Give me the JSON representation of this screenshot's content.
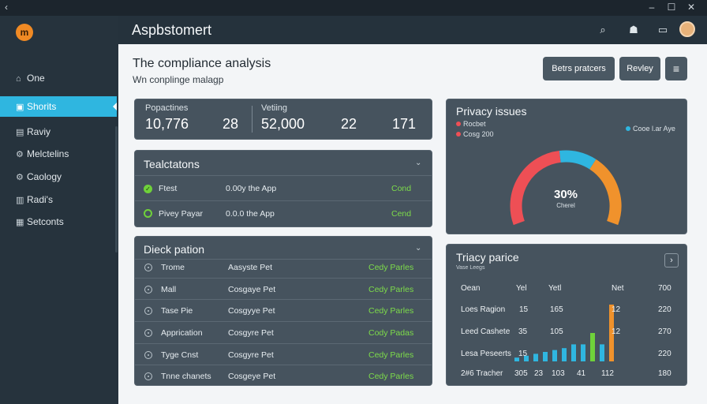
{
  "window": {
    "back_icon": "‹",
    "minimize_icon": "–",
    "maximize_icon": "☐",
    "close_icon": "✕"
  },
  "app": {
    "title": "Aspbstomert",
    "logo_text": "m",
    "colors": {
      "accent": "#2fb6e0",
      "orange": "#f0922c",
      "green": "#6fd13a",
      "red": "#ee4f55"
    }
  },
  "sidebar": {
    "items": [
      {
        "label": "One",
        "icon": "home-icon"
      },
      {
        "label": "Shorits",
        "icon": "shortcut-icon"
      },
      {
        "label": "Raviy",
        "icon": "review-icon"
      },
      {
        "label": "Melctelins",
        "icon": "metrics-icon"
      },
      {
        "label": "Caology",
        "icon": "catalog-icon"
      },
      {
        "label": "Radi's",
        "icon": "radio-icon"
      },
      {
        "label": "Setconts",
        "icon": "settings-icon"
      }
    ]
  },
  "page": {
    "title": "The compliance analysis",
    "subtitle": "Wn conplinge malagp",
    "buttons": {
      "primary": "Betrs pratcers",
      "secondary": "Revley",
      "menu": "≡"
    }
  },
  "stats": {
    "left_label": "Popactines",
    "right_label": "Vetiing",
    "values": [
      "10,776",
      "28",
      "52,000",
      "22",
      "171"
    ]
  },
  "transactions": {
    "title": "Tealctatons",
    "rows": [
      {
        "name": "Ftest",
        "detail": "0.00y the App",
        "status": "Cond"
      },
      {
        "name": "Pivey Payar",
        "detail": "0.0.0 the App",
        "status": "Cend"
      }
    ]
  },
  "deck": {
    "title": "Dieck pation",
    "rows": [
      {
        "name": "Trome",
        "type": "Aasyste Pet",
        "status": "Cedy Parles"
      },
      {
        "name": "Mall",
        "type": "Cosgaye Pet",
        "status": "Cedy Parles"
      },
      {
        "name": "Tase Pie",
        "type": "Cosgyye Pet",
        "status": "Cedy Parles"
      },
      {
        "name": "Apprication",
        "type": "Cosgyre Pet",
        "status": "Cody Padas"
      },
      {
        "name": "Tyge Cnst",
        "type": "Cosgyre Pet",
        "status": "Cedy Parles"
      },
      {
        "name": "Tnne chanets",
        "type": "Cosgeye Pet",
        "status": "Cedy Parles"
      }
    ]
  },
  "privacy": {
    "title": "Privacy issues",
    "legend": [
      {
        "label": "Rocbet",
        "color": "#ee4f55"
      },
      {
        "label": "Cosg 200",
        "color": "#ee4f55"
      },
      {
        "label": "Cooe l.ar Aye",
        "color": "#2fb6e0"
      }
    ],
    "gauge_value": "30%",
    "gauge_label": "Cherel",
    "gauge_segments": [
      {
        "name": "red",
        "fraction": 0.47,
        "color": "#ee4f55"
      },
      {
        "name": "blue",
        "fraction": 0.18,
        "color": "#2fb6e0"
      },
      {
        "name": "orange",
        "fraction": 0.35,
        "color": "#f0922c"
      }
    ]
  },
  "triacy": {
    "title": "Triacy parice",
    "subtitle": "Vase Leegs",
    "headers": [
      "Oean",
      "Yel",
      "Yetl",
      "Net",
      "700"
    ],
    "rows": [
      [
        "Loes Ragion",
        "15",
        "165",
        "12",
        "220"
      ],
      [
        "Leed Cashete",
        "35",
        "105",
        "12",
        "270"
      ],
      [
        "Lesa Peseerts",
        "15",
        "",
        "",
        "220"
      ],
      [
        "2#6 Tracher",
        "305",
        "23",
        "103",
        "41",
        "112",
        "180"
      ]
    ],
    "bars": [
      {
        "value": 4,
        "color": "#2fb6e0"
      },
      {
        "value": 6,
        "color": "#2fb6e0"
      },
      {
        "value": 8,
        "color": "#2fb6e0"
      },
      {
        "value": 10,
        "color": "#2fb6e0"
      },
      {
        "value": 12,
        "color": "#2fb6e0"
      },
      {
        "value": 14,
        "color": "#2fb6e0"
      },
      {
        "value": 18,
        "color": "#2fb6e0"
      },
      {
        "value": 18,
        "color": "#2fb6e0"
      },
      {
        "value": 30,
        "color": "#6fd13a"
      },
      {
        "value": 18,
        "color": "#2fb6e0"
      },
      {
        "value": 60,
        "color": "#f0922c"
      }
    ]
  }
}
